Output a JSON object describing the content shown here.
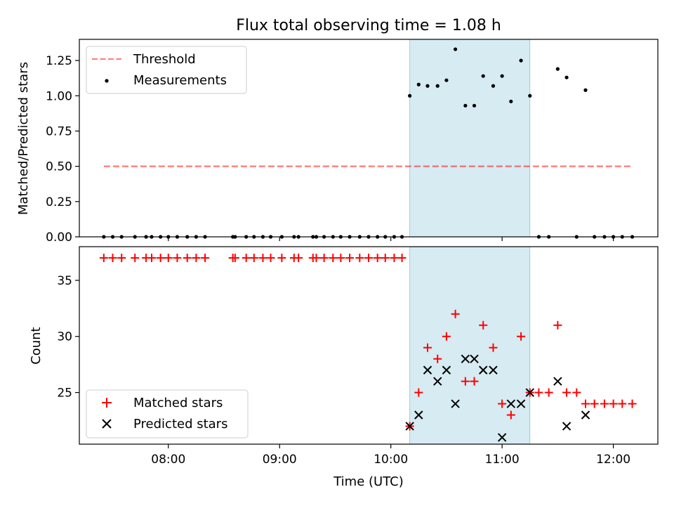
{
  "chart_data": [
    {
      "type": "scatter",
      "title": "Flux total observing time = 1.08 h",
      "xlabel": "",
      "ylabel": "Matched/Predicted stars",
      "xlim": [
        7.2,
        12.4
      ],
      "ylim": [
        0.0,
        1.4
      ],
      "yticks": [
        0.0,
        0.25,
        0.5,
        0.75,
        1.0,
        1.25
      ],
      "ytick_labels": [
        "0.00",
        "0.25",
        "0.50",
        "0.75",
        "1.00",
        "1.25"
      ],
      "xticks": [
        8,
        9,
        10,
        11,
        12
      ],
      "highlight_span": [
        10.17,
        11.25
      ],
      "highlight_color": "#add8e6",
      "legend_position": "upper-left",
      "series": [
        {
          "name": "Threshold",
          "style": "dashed-line",
          "color": "#ff0000",
          "x": [
            7.42,
            12.17
          ],
          "y": [
            0.5,
            0.5
          ]
        },
        {
          "name": "Measurements",
          "style": "dot",
          "color": "#000000",
          "x": [
            7.42,
            7.5,
            7.58,
            7.7,
            7.8,
            7.85,
            7.93,
            8.0,
            8.08,
            8.17,
            8.25,
            8.33,
            8.58,
            8.6,
            8.7,
            8.77,
            8.85,
            8.92,
            9.02,
            9.13,
            9.17,
            9.3,
            9.33,
            9.4,
            9.48,
            9.55,
            9.63,
            9.72,
            9.8,
            9.88,
            9.95,
            10.03,
            10.1,
            10.17,
            10.25,
            10.33,
            10.42,
            10.5,
            10.58,
            10.67,
            10.75,
            10.83,
            10.92,
            11.0,
            11.08,
            11.17,
            11.25,
            11.33,
            11.42,
            11.5,
            11.58,
            11.67,
            11.75,
            11.83,
            11.92,
            12.0,
            12.08,
            12.17
          ],
          "y": [
            0,
            0,
            0,
            0,
            0,
            0,
            0,
            0,
            0,
            0,
            0,
            0,
            0,
            0,
            0,
            0,
            0,
            0,
            0,
            0,
            0,
            0,
            0,
            0,
            0,
            0,
            0,
            0,
            0,
            0,
            0,
            0,
            0,
            1.0,
            1.08,
            1.07,
            1.07,
            1.11,
            1.33,
            0.93,
            0.93,
            1.14,
            1.07,
            1.14,
            0.96,
            1.25,
            1.0,
            0,
            0,
            1.19,
            1.13,
            0,
            1.04,
            0,
            0,
            0,
            0,
            0
          ]
        }
      ]
    },
    {
      "type": "scatter",
      "title": "",
      "xlabel": "Time (UTC)",
      "ylabel": "Count",
      "xlim": [
        7.2,
        12.4
      ],
      "ylim": [
        20.4,
        38.0
      ],
      "yticks": [
        25,
        30,
        35
      ],
      "ytick_labels": [
        "25",
        "30",
        "35"
      ],
      "xticks": [
        8,
        9,
        10,
        11,
        12
      ],
      "xtick_labels": [
        "08:00",
        "09:00",
        "10:00",
        "11:00",
        "12:00"
      ],
      "highlight_span": [
        10.17,
        11.25
      ],
      "highlight_color": "#add8e6",
      "legend_position": "lower-left",
      "series": [
        {
          "name": "Matched stars",
          "marker": "plus",
          "color": "#ff0000",
          "x": [
            7.42,
            7.5,
            7.58,
            7.7,
            7.8,
            7.85,
            7.93,
            8.0,
            8.08,
            8.17,
            8.25,
            8.33,
            8.58,
            8.6,
            8.7,
            8.77,
            8.85,
            8.92,
            9.02,
            9.13,
            9.17,
            9.3,
            9.33,
            9.4,
            9.48,
            9.55,
            9.63,
            9.72,
            9.8,
            9.88,
            9.95,
            10.03,
            10.1,
            10.17,
            10.25,
            10.33,
            10.42,
            10.5,
            10.58,
            10.67,
            10.75,
            10.83,
            10.92,
            11.0,
            11.08,
            11.17,
            11.25,
            11.33,
            11.42,
            11.5,
            11.58,
            11.67,
            11.75,
            11.83,
            11.92,
            12.0,
            12.08,
            12.17
          ],
          "y": [
            37,
            37,
            37,
            37,
            37,
            37,
            37,
            37,
            37,
            37,
            37,
            37,
            37,
            37,
            37,
            37,
            37,
            37,
            37,
            37,
            37,
            37,
            37,
            37,
            37,
            37,
            37,
            37,
            37,
            37,
            37,
            37,
            37,
            22,
            25,
            29,
            28,
            30,
            32,
            26,
            26,
            31,
            29,
            24,
            23,
            30,
            25,
            25,
            25,
            31,
            25,
            25,
            24,
            24,
            24,
            24,
            24,
            24
          ]
        },
        {
          "name": "Predicted stars",
          "marker": "x",
          "color": "#000000",
          "x": [
            10.17,
            10.25,
            10.33,
            10.42,
            10.5,
            10.58,
            10.67,
            10.75,
            10.83,
            10.92,
            11.0,
            11.08,
            11.17,
            11.25,
            11.5,
            11.58,
            11.75
          ],
          "y": [
            22,
            23,
            27,
            26,
            27,
            24,
            28,
            28,
            27,
            27,
            21,
            24,
            24,
            25,
            26,
            22,
            23
          ]
        }
      ]
    }
  ]
}
